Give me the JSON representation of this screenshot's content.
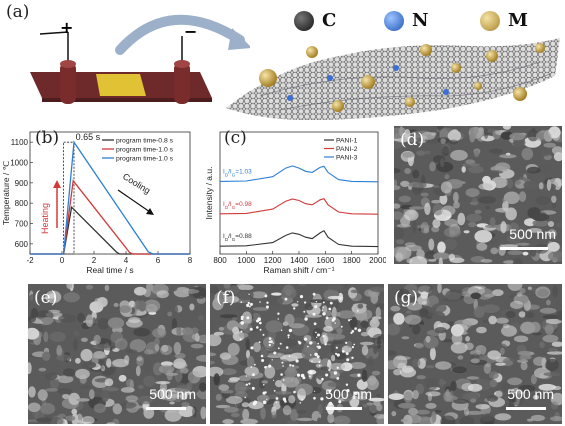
{
  "panels": {
    "a": "(a)",
    "b": "(b)",
    "c": "(c)",
    "d": "(d)",
    "e": "(e)",
    "f": "(f)",
    "g": "(g)"
  },
  "schematic": {
    "terminal_positive": "+",
    "terminal_negative": "−",
    "atoms": [
      {
        "symbol": "C",
        "color": "#2b2b2b"
      },
      {
        "symbol": "N",
        "color": "#2f6fd0"
      },
      {
        "symbol": "M",
        "color": "#c9a43e"
      }
    ]
  },
  "sem_scalebars": {
    "d": "500 nm",
    "e": "500 nm",
    "f": "500 nm",
    "g": "500 nm"
  },
  "chart_data": [
    {
      "panel": "b",
      "type": "line",
      "xlabel": "Real time / s",
      "ylabel": "Temperature / ℃",
      "xlim": [
        -2,
        8
      ],
      "ylim": [
        550,
        1150
      ],
      "xticks": [
        -2,
        0,
        2,
        4,
        6,
        8
      ],
      "yticks": [
        600,
        700,
        800,
        900,
        1000,
        1100
      ],
      "annotations": [
        "0.65 s",
        "Heating",
        "Cooling"
      ],
      "series": [
        {
          "name": "program time-0.8 s",
          "color": "#333333",
          "x": [
            -2,
            0.1,
            0.6,
            3.4,
            3.6,
            8
          ],
          "y": [
            550,
            550,
            780,
            560,
            550,
            550
          ]
        },
        {
          "name": "program time-1.0 s",
          "color": "#d23a3a",
          "x": [
            -2,
            0.1,
            0.7,
            4.2,
            4.4,
            8
          ],
          "y": [
            550,
            550,
            910,
            560,
            550,
            550
          ]
        },
        {
          "name": "program time-1.0 s",
          "color": "#2a7fd4",
          "x": [
            -2,
            0.1,
            0.75,
            5.4,
            5.7,
            8
          ],
          "y": [
            550,
            550,
            1100,
            560,
            550,
            550
          ]
        }
      ]
    },
    {
      "panel": "c",
      "type": "line",
      "xlabel": "Raman shift / cm⁻¹",
      "ylabel": "Intensity / a.u.",
      "xlim": [
        800,
        2000
      ],
      "xticks": [
        800,
        1000,
        1200,
        1400,
        1600,
        1800,
        2000
      ],
      "annotations": [
        "I_D/I_G=1.03",
        "I_D/I_G=0.98",
        "I_D/I_G=0.88"
      ],
      "series": [
        {
          "name": "PANI-1",
          "color": "#333333",
          "id_ig": "I_D/I_G=0.88",
          "x": [
            800,
            1000,
            1200,
            1300,
            1350,
            1400,
            1450,
            1500,
            1560,
            1590,
            1620,
            1700,
            1800,
            2000
          ],
          "y": [
            0.05,
            0.06,
            0.15,
            0.35,
            0.42,
            0.38,
            0.3,
            0.26,
            0.42,
            0.48,
            0.3,
            0.1,
            0.05,
            0.04
          ]
        },
        {
          "name": "PANI-2",
          "color": "#d23a3a",
          "id_ig": "I_D/I_G=0.98",
          "x": [
            800,
            1000,
            1200,
            1300,
            1350,
            1400,
            1450,
            1500,
            1560,
            1590,
            1620,
            1700,
            1800,
            2000
          ],
          "y": [
            0.05,
            0.06,
            0.18,
            0.4,
            0.46,
            0.42,
            0.33,
            0.3,
            0.44,
            0.47,
            0.3,
            0.1,
            0.05,
            0.04
          ]
        },
        {
          "name": "PANI-3",
          "color": "#2a7fd4",
          "id_ig": "I_D/I_G=1.03",
          "x": [
            800,
            1000,
            1200,
            1300,
            1350,
            1400,
            1450,
            1500,
            1560,
            1590,
            1620,
            1700,
            1800,
            2000
          ],
          "y": [
            0.05,
            0.06,
            0.18,
            0.42,
            0.48,
            0.42,
            0.33,
            0.3,
            0.44,
            0.47,
            0.3,
            0.1,
            0.05,
            0.04
          ]
        }
      ]
    }
  ]
}
